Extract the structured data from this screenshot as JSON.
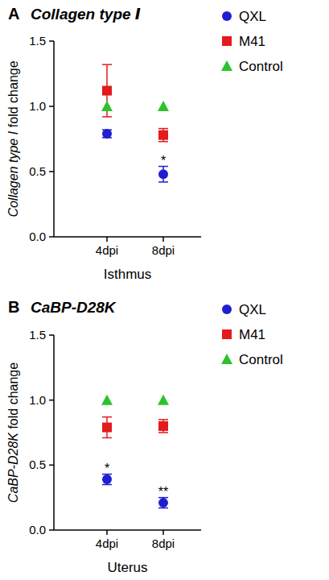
{
  "chart_data": [
    {
      "type": "scatter",
      "title": "Collagen type Ⅰ",
      "annotations": [
        "A"
      ],
      "y_label": "Collagen type Ⅰ fold change",
      "x_label": "Isthmus",
      "categories": [
        "4dpi",
        "8dpi"
      ],
      "ylim": [
        0,
        1.5
      ],
      "yticks": [
        {
          "value": 0,
          "label": "0.0"
        },
        {
          "value": 0.5,
          "label": "0.5"
        },
        {
          "value": 1,
          "label": "1.0"
        },
        {
          "value": 1.5,
          "label": "1.5"
        }
      ],
      "legend": "right",
      "series": [
        {
          "name": "QXL",
          "color": "#1f1fd1",
          "marker": "circle",
          "values": [
            0.79,
            0.48
          ],
          "errors": [
            0.03,
            0.06
          ],
          "significance": [
            null,
            "*"
          ]
        },
        {
          "name": "M41",
          "color": "#e41a1c",
          "marker": "square",
          "values": [
            1.12,
            0.78
          ],
          "errors": [
            0.2,
            0.05
          ]
        },
        {
          "name": "Control",
          "color": "#2dc22d",
          "marker": "triangle",
          "values": [
            1,
            1
          ]
        }
      ]
    },
    {
      "type": "scatter",
      "title": "CaBP-D28K",
      "annotations": [
        "B"
      ],
      "y_label": "CaBP-D28K fold change",
      "x_label": "Uterus",
      "categories": [
        "4dpi",
        "8dpi"
      ],
      "ylim": [
        0,
        1.5
      ],
      "yticks": [
        {
          "value": 0,
          "label": "0.0"
        },
        {
          "value": 0.5,
          "label": "0.5"
        },
        {
          "value": 1,
          "label": "1.0"
        },
        {
          "value": 1.5,
          "label": "1.5"
        }
      ],
      "legend": "right",
      "series": [
        {
          "name": "QXL",
          "color": "#1f1fd1",
          "marker": "circle",
          "values": [
            0.39,
            0.21
          ],
          "errors": [
            0.04,
            0.04
          ],
          "significance": [
            "*",
            "**"
          ]
        },
        {
          "name": "M41",
          "color": "#e41a1c",
          "marker": "square",
          "values": [
            0.79,
            0.8
          ],
          "errors": [
            0.08,
            0.05
          ]
        },
        {
          "name": "Control",
          "color": "#2dc22d",
          "marker": "triangle",
          "values": [
            1,
            1
          ]
        }
      ]
    }
  ]
}
